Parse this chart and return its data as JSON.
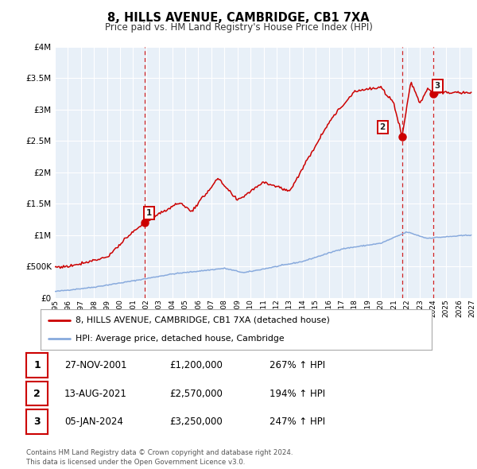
{
  "title": "8, HILLS AVENUE, CAMBRIDGE, CB1 7XA",
  "subtitle": "Price paid vs. HM Land Registry's House Price Index (HPI)",
  "legend_line1": "8, HILLS AVENUE, CAMBRIDGE, CB1 7XA (detached house)",
  "legend_line2": "HPI: Average price, detached house, Cambridge",
  "sale_color": "#cc0000",
  "hpi_color": "#88aadd",
  "bg_color": "#ffffff",
  "plot_bg": "#e8f0f8",
  "grid_color": "#ffffff",
  "dashed_color": "#cc0000",
  "footer": "Contains HM Land Registry data © Crown copyright and database right 2024.\nThis data is licensed under the Open Government Licence v3.0.",
  "sales": [
    {
      "num": 1,
      "date": "27-NOV-2001",
      "date_decimal": 2001.9,
      "price": 1200000,
      "pct": "267% ↑ HPI"
    },
    {
      "num": 2,
      "date": "13-AUG-2021",
      "date_decimal": 2021.62,
      "price": 2570000,
      "pct": "194% ↑ HPI"
    },
    {
      "num": 3,
      "date": "05-JAN-2024",
      "date_decimal": 2024.03,
      "price": 3250000,
      "pct": "247% ↑ HPI"
    }
  ],
  "table_rows": [
    {
      "num": 1,
      "date": "27-NOV-2001",
      "price": "£1,200,000",
      "pct": "267% ↑ HPI"
    },
    {
      "num": 2,
      "date": "13-AUG-2021",
      "price": "£2,570,000",
      "pct": "194% ↑ HPI"
    },
    {
      "num": 3,
      "date": "05-JAN-2024",
      "price": "£3,250,000",
      "pct": "247% ↑ HPI"
    }
  ],
  "ylim": [
    0,
    4000000
  ],
  "xlim": [
    1995,
    2027
  ],
  "yticks": [
    0,
    500000,
    1000000,
    1500000,
    2000000,
    2500000,
    3000000,
    3500000,
    4000000
  ],
  "ytick_labels": [
    "£0",
    "£500K",
    "£1M",
    "£1.5M",
    "£2M",
    "£2.5M",
    "£3M",
    "£3.5M",
    "£4M"
  ],
  "xticks": [
    1995,
    1996,
    1997,
    1998,
    1999,
    2000,
    2001,
    2002,
    2003,
    2004,
    2005,
    2006,
    2007,
    2008,
    2009,
    2010,
    2011,
    2012,
    2013,
    2014,
    2015,
    2016,
    2017,
    2018,
    2019,
    2020,
    2021,
    2022,
    2023,
    2024,
    2025,
    2026,
    2027
  ]
}
